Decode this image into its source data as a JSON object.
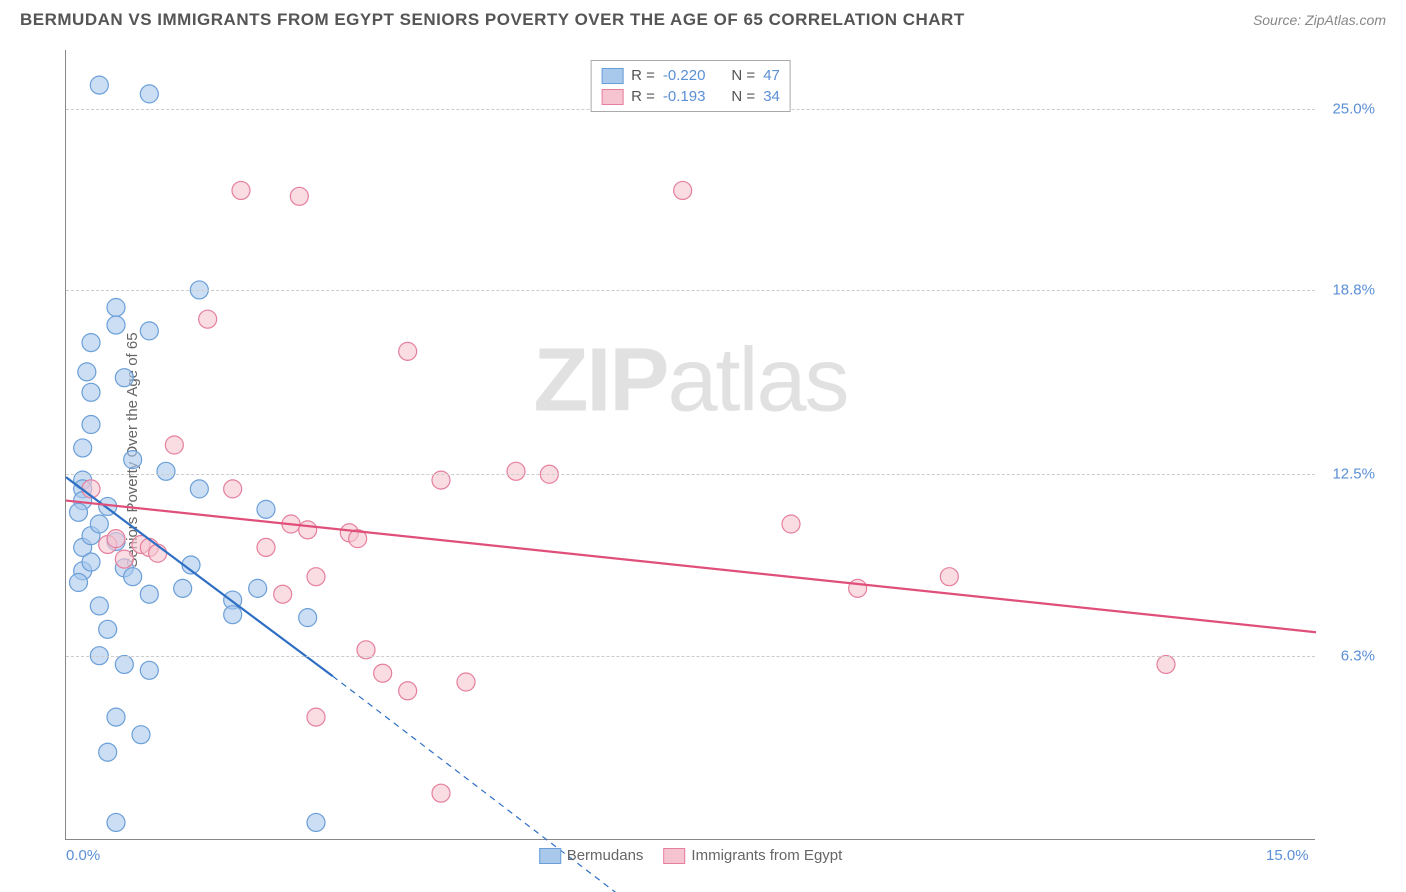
{
  "header": {
    "title": "BERMUDAN VS IMMIGRANTS FROM EGYPT SENIORS POVERTY OVER THE AGE OF 65 CORRELATION CHART",
    "source_prefix": "Source: ",
    "source": "ZipAtlas.com"
  },
  "watermark": {
    "zip": "ZIP",
    "atlas": "atlas"
  },
  "chart": {
    "type": "scatter",
    "y_axis_label": "Seniors Poverty Over the Age of 65",
    "xlim": [
      0.0,
      15.0
    ],
    "ylim": [
      0.0,
      27.0
    ],
    "x_ticks": [
      {
        "v": 0.0,
        "label": "0.0%"
      },
      {
        "v": 15.0,
        "label": "15.0%"
      }
    ],
    "y_ticks": [
      {
        "v": 6.3,
        "label": "6.3%"
      },
      {
        "v": 12.5,
        "label": "12.5%"
      },
      {
        "v": 18.8,
        "label": "18.8%"
      },
      {
        "v": 25.0,
        "label": "25.0%"
      }
    ],
    "grid_color": "#cccccc",
    "background_color": "#ffffff",
    "marker_radius": 9,
    "marker_stroke_width": 1.2,
    "line_width_solid": 2.2,
    "line_width_dash": 1.2,
    "series": [
      {
        "id": "bermudans",
        "label": "Bermudans",
        "fill": "#a8c8ec",
        "stroke": "#6b9fd8",
        "line_color": "#2e6fc4",
        "R": "-0.220",
        "N": "47",
        "points": [
          [
            0.4,
            25.8
          ],
          [
            1.0,
            25.5
          ],
          [
            0.2,
            12.3
          ],
          [
            0.2,
            12.0
          ],
          [
            0.2,
            11.6
          ],
          [
            0.2,
            13.4
          ],
          [
            0.3,
            14.2
          ],
          [
            0.3,
            15.3
          ],
          [
            0.25,
            16.0
          ],
          [
            0.3,
            17.0
          ],
          [
            0.6,
            18.2
          ],
          [
            0.6,
            17.6
          ],
          [
            1.0,
            17.4
          ],
          [
            0.7,
            15.8
          ],
          [
            1.6,
            18.8
          ],
          [
            0.2,
            10.0
          ],
          [
            0.3,
            10.4
          ],
          [
            0.4,
            10.8
          ],
          [
            0.6,
            10.2
          ],
          [
            0.2,
            9.2
          ],
          [
            0.3,
            9.5
          ],
          [
            0.7,
            9.3
          ],
          [
            0.8,
            9.0
          ],
          [
            1.0,
            8.4
          ],
          [
            0.4,
            8.0
          ],
          [
            0.5,
            7.2
          ],
          [
            0.4,
            6.3
          ],
          [
            0.7,
            6.0
          ],
          [
            1.0,
            5.8
          ],
          [
            0.6,
            4.2
          ],
          [
            0.9,
            3.6
          ],
          [
            0.5,
            3.0
          ],
          [
            0.6,
            0.6
          ],
          [
            3.0,
            0.6
          ],
          [
            1.4,
            8.6
          ],
          [
            1.5,
            9.4
          ],
          [
            1.6,
            12.0
          ],
          [
            2.0,
            8.2
          ],
          [
            2.0,
            7.7
          ],
          [
            2.3,
            8.6
          ],
          [
            2.4,
            11.3
          ],
          [
            2.9,
            7.6
          ],
          [
            0.15,
            11.2
          ],
          [
            0.15,
            8.8
          ],
          [
            0.5,
            11.4
          ],
          [
            0.8,
            13.0
          ],
          [
            1.2,
            12.6
          ]
        ],
        "trend": {
          "x1": 0.0,
          "y1": 12.4,
          "x2": 3.2,
          "y2": 5.6,
          "dash_to_x": 6.6,
          "dash_to_y": -1.8
        }
      },
      {
        "id": "egypt",
        "label": "Immigrants from Egypt",
        "fill": "#f6c4d1",
        "stroke": "#e57f9e",
        "line_color": "#e04f7a",
        "R": "-0.193",
        "N": "34",
        "points": [
          [
            0.3,
            12.0
          ],
          [
            0.5,
            10.1
          ],
          [
            0.6,
            10.3
          ],
          [
            0.7,
            9.6
          ],
          [
            0.9,
            10.1
          ],
          [
            1.0,
            10.0
          ],
          [
            1.1,
            9.8
          ],
          [
            1.7,
            17.8
          ],
          [
            2.1,
            22.2
          ],
          [
            2.0,
            12.0
          ],
          [
            2.4,
            10.0
          ],
          [
            2.6,
            8.4
          ],
          [
            2.8,
            22.0
          ],
          [
            2.9,
            10.6
          ],
          [
            3.0,
            9.0
          ],
          [
            3.0,
            4.2
          ],
          [
            3.4,
            10.5
          ],
          [
            3.5,
            10.3
          ],
          [
            3.8,
            5.7
          ],
          [
            4.1,
            5.1
          ],
          [
            4.5,
            1.6
          ],
          [
            4.5,
            12.3
          ],
          [
            4.1,
            16.7
          ],
          [
            5.4,
            12.6
          ],
          [
            5.8,
            12.5
          ],
          [
            4.8,
            5.4
          ],
          [
            7.4,
            22.2
          ],
          [
            8.7,
            10.8
          ],
          [
            9.5,
            8.6
          ],
          [
            10.6,
            9.0
          ],
          [
            13.2,
            6.0
          ],
          [
            3.6,
            6.5
          ],
          [
            2.7,
            10.8
          ],
          [
            1.3,
            13.5
          ]
        ],
        "trend": {
          "x1": 0.0,
          "y1": 11.6,
          "x2": 15.0,
          "y2": 7.1
        }
      }
    ]
  },
  "legend_top": {
    "r_label": "R =",
    "n_label": "N ="
  }
}
